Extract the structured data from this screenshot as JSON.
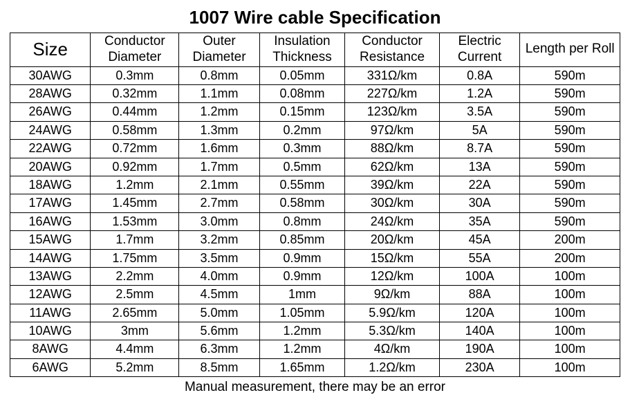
{
  "title": "1007 Wire cable Specification",
  "footer": "Manual measurement, there may be an error",
  "table": {
    "columns": [
      "Size",
      "Conductor Diameter",
      "Outer Diameter",
      "Insulation Thickness",
      "Conductor Resistance",
      "Electric Current",
      "Length per Roll"
    ],
    "column_widths_pct": [
      13.2,
      14.5,
      13.2,
      14,
      15.5,
      13.2,
      16.4
    ],
    "header_fontsize": 19,
    "size_header_fontsize": 26,
    "body_fontsize": 18,
    "border_color": "#000000",
    "background_color": "#ffffff",
    "text_color": "#000000",
    "rows": [
      [
        "30AWG",
        "0.3mm",
        "0.8mm",
        "0.05mm",
        "331Ω/km",
        "0.8A",
        "590m"
      ],
      [
        "28AWG",
        "0.32mm",
        "1.1mm",
        "0.08mm",
        "227Ω/km",
        "1.2A",
        "590m"
      ],
      [
        "26AWG",
        "0.44mm",
        "1.2mm",
        "0.15mm",
        "123Ω/km",
        "3.5A",
        "590m"
      ],
      [
        "24AWG",
        "0.58mm",
        "1.3mm",
        "0.2mm",
        "97Ω/km",
        "5A",
        "590m"
      ],
      [
        "22AWG",
        "0.72mm",
        "1.6mm",
        "0.3mm",
        "88Ω/km",
        "8.7A",
        "590m"
      ],
      [
        "20AWG",
        "0.92mm",
        "1.7mm",
        "0.5mm",
        "62Ω/km",
        "13A",
        "590m"
      ],
      [
        "18AWG",
        "1.2mm",
        "2.1mm",
        "0.55mm",
        "39Ω/km",
        "22A",
        "590m"
      ],
      [
        "17AWG",
        "1.45mm",
        "2.7mm",
        "0.58mm",
        "30Ω/km",
        "30A",
        "590m"
      ],
      [
        "16AWG",
        "1.53mm",
        "3.0mm",
        "0.8mm",
        "24Ω/km",
        "35A",
        "590m"
      ],
      [
        "15AWG",
        "1.7mm",
        "3.2mm",
        "0.85mm",
        "20Ω/km",
        "45A",
        "200m"
      ],
      [
        "14AWG",
        "1.75mm",
        "3.5mm",
        "0.9mm",
        "15Ω/km",
        "55A",
        "200m"
      ],
      [
        "13AWG",
        "2.2mm",
        "4.0mm",
        "0.9mm",
        "12Ω/km",
        "100A",
        "100m"
      ],
      [
        "12AWG",
        "2.5mm",
        "4.5mm",
        "1mm",
        "9Ω/km",
        "88A",
        "100m"
      ],
      [
        "11AWG",
        "2.65mm",
        "5.0mm",
        "1.05mm",
        "5.9Ω/km",
        "120A",
        "100m"
      ],
      [
        "10AWG",
        "3mm",
        "5.6mm",
        "1.2mm",
        "5.3Ω/km",
        "140A",
        "100m"
      ],
      [
        "8AWG",
        "4.4mm",
        "6.3mm",
        "1.2mm",
        "4Ω/km",
        "190A",
        "100m"
      ],
      [
        "6AWG",
        "5.2mm",
        "8.5mm",
        "1.65mm",
        "1.2Ω/km",
        "230A",
        "100m"
      ]
    ]
  }
}
